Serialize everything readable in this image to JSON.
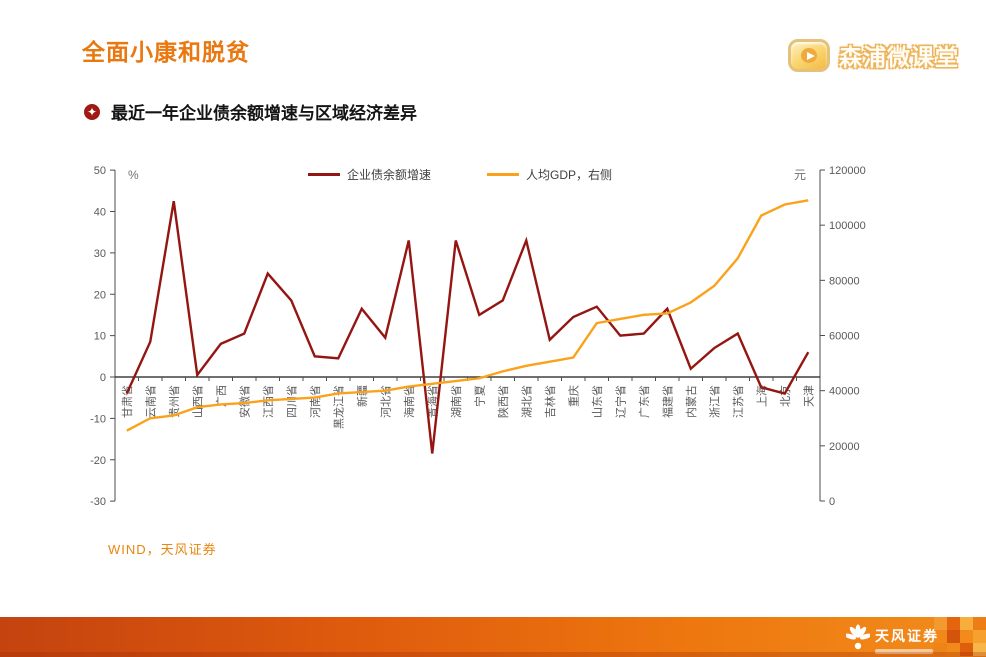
{
  "header": {
    "title": "全面小康和脱贫",
    "brand": "森浦微课堂"
  },
  "section": {
    "heading": "最近一年企业债余额增速与区域经济差异"
  },
  "source_note": "WIND，天风证券",
  "footer": {
    "brand": "天风证券"
  },
  "icons": {
    "brand": "play-icon",
    "bullet": "four-point-star-icon",
    "footer": "flower-icon"
  },
  "colors": {
    "accent_orange": "#E8780F",
    "bullet_red": "#A01913",
    "source_orange": "#E8860D",
    "footer_gradient_left": "#C4430F",
    "footer_gradient_right": "#F18C1C"
  },
  "chart_data": {
    "type": "line",
    "title": "最近一年企业债余额增速与区域经济差异",
    "grid": false,
    "legend_position": "top",
    "categories": [
      "甘肃省",
      "云南省",
      "贵州省",
      "山西省",
      "广西",
      "安徽省",
      "江西省",
      "四川省",
      "河南省",
      "黑龙江省",
      "新疆",
      "河北省",
      "海南省",
      "青海省",
      "湖南省",
      "宁夏",
      "陕西省",
      "湖北省",
      "吉林省",
      "重庆",
      "山东省",
      "辽宁省",
      "广东省",
      "福建省",
      "内蒙古",
      "浙江省",
      "江苏省",
      "上海",
      "北京",
      "天津"
    ],
    "series": [
      {
        "name": "企业债余额增速",
        "axis": "left",
        "color": "#941612",
        "values": [
          -4,
          8.5,
          42.5,
          0.5,
          8,
          10.5,
          25,
          18.5,
          5,
          4.5,
          16.5,
          9.5,
          33,
          -18.5,
          33,
          15,
          18.5,
          33,
          9,
          14.5,
          17,
          10,
          10.5,
          16.5,
          2,
          7,
          10.5,
          -2.5,
          -4,
          6
        ]
      },
      {
        "name": "人均GDP，右侧",
        "axis": "right",
        "color": "#FAA21B",
        "values": [
          25500,
          30000,
          31000,
          34000,
          35000,
          35500,
          36500,
          37000,
          37500,
          39000,
          39500,
          40000,
          41500,
          42500,
          43500,
          44500,
          47000,
          49000,
          50500,
          52000,
          64500,
          66000,
          67500,
          68000,
          72000,
          78000,
          88000,
          103500,
          107500,
          109000
        ]
      }
    ],
    "left_axis": {
      "unit": "%",
      "min": -30,
      "max": 50,
      "ticks": [
        50,
        40,
        30,
        20,
        10,
        0,
        -10,
        -20,
        -30
      ]
    },
    "right_axis": {
      "unit": "元",
      "min": 0,
      "max": 120000,
      "ticks": [
        0,
        20000,
        40000,
        60000,
        80000,
        100000,
        120000
      ]
    }
  }
}
